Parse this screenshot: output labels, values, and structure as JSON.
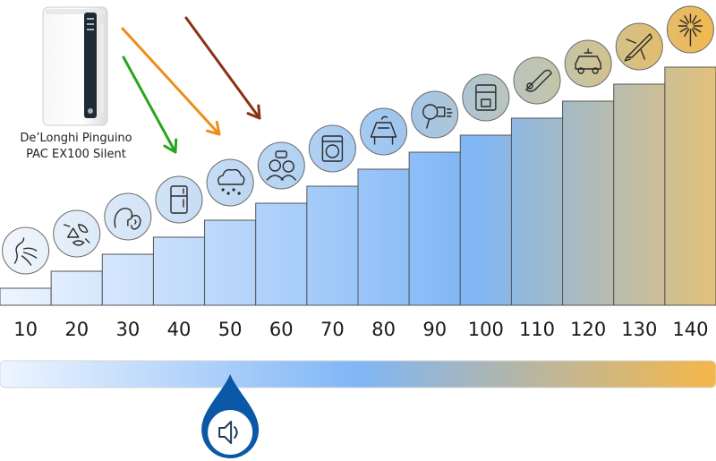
{
  "product": {
    "name_line1": "De’Longhi Pinguino",
    "name_line2": "PAC EX100 Silent",
    "brand_mark": "De'Longhi Pinguino"
  },
  "colors": {
    "scale_start": "#eef5ff",
    "scale_mid": "#7fb6f6",
    "scale_end": "#f5b748",
    "marker": "#0a58a6",
    "bar_stroke": "#555555",
    "arrow_green": "#2aa520",
    "arrow_orange": "#f08c18",
    "arrow_brown": "#8b3214"
  },
  "chart_data": {
    "type": "bar",
    "categories": [
      "10",
      "20",
      "30",
      "40",
      "50",
      "60",
      "70",
      "80",
      "90",
      "100",
      "110",
      "120",
      "130",
      "140"
    ],
    "values": [
      10,
      20,
      30,
      40,
      50,
      60,
      70,
      80,
      90,
      100,
      110,
      120,
      130,
      140
    ],
    "unit": "",
    "ylim": [
      0,
      140
    ],
    "grid": false,
    "icons": [
      "whisper-breath-icon",
      "rustling-leaves-icon",
      "quiet-conversation-icon",
      "refrigerator-icon",
      "rain-cloud-icon",
      "conversation-icon",
      "washing-machine-icon",
      "piano-icon",
      "hair-dryer-icon",
      "coffee-machine-icon",
      "chainsaw-icon",
      "car-icon",
      "jet-plane-icon",
      "fireworks-icon"
    ],
    "indicator_value": 50
  },
  "arrows": [
    {
      "name": "green-arrow",
      "color": "arrow_green"
    },
    {
      "name": "orange-arrow",
      "color": "arrow_orange"
    },
    {
      "name": "brown-arrow",
      "color": "arrow_brown"
    }
  ],
  "marker": {
    "icon": "speaker-icon"
  }
}
